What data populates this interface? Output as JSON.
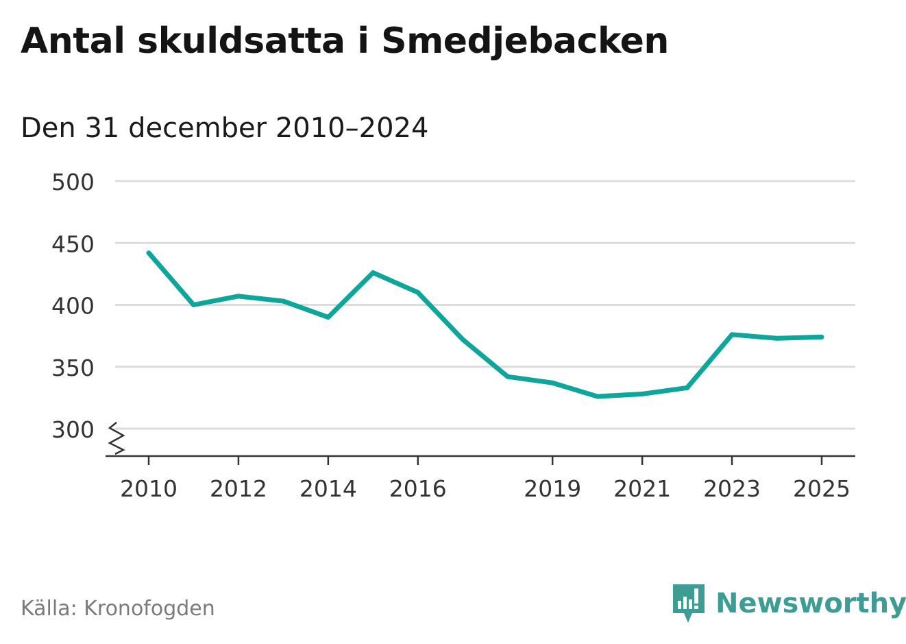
{
  "title": "Antal skuldsatta i Smedjebacken",
  "subtitle": "Den 31 december 2010–2024",
  "source": "Källa: Kronofogden",
  "brand": {
    "name": "Newsworthy",
    "icon": "newsworthy-logo-icon",
    "color": "#3d9c94"
  },
  "colors": {
    "line": "#0ea59b",
    "grid": "#dcdcdc",
    "axis": "#333333"
  },
  "chart_data": {
    "type": "line",
    "title": "Antal skuldsatta i Smedjebacken",
    "subtitle": "Den 31 december 2010–2024",
    "xlabel": "",
    "ylabel": "",
    "x": [
      2010,
      2011,
      2012,
      2013,
      2014,
      2015,
      2016,
      2017,
      2018,
      2019,
      2020,
      2021,
      2022,
      2023,
      2024,
      2025
    ],
    "series": [
      {
        "name": "Antal skuldsatta",
        "values": [
          442,
          400,
          407,
          403,
          390,
          426,
          410,
          372,
          342,
          337,
          326,
          328,
          333,
          376,
          373,
          374
        ]
      }
    ],
    "xticks": [
      "2010",
      "2012",
      "2014",
      "2016",
      "2019",
      "2021",
      "2023",
      "2025"
    ],
    "yticks": [
      "500",
      "450",
      "400",
      "350",
      "300"
    ],
    "ylim": [
      278,
      500
    ],
    "xlim": [
      2009.25,
      2025.75
    ],
    "grid": true,
    "axis_break": true
  }
}
